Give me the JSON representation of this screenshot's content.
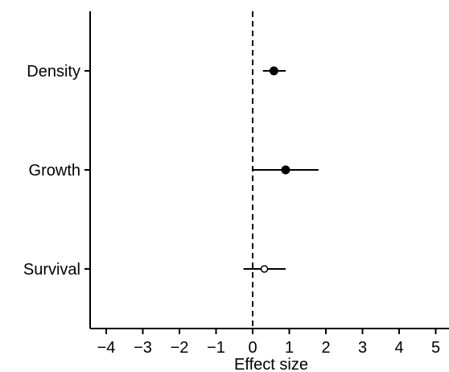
{
  "chart_data": {
    "type": "scatter",
    "title": "",
    "xlabel": "Effect size",
    "ylabel": "",
    "xlim": [
      -4.4,
      5.3
    ],
    "x_ticks": [
      -4,
      -3,
      -2,
      -1,
      0,
      1,
      2,
      3,
      4,
      5
    ],
    "x_tick_labels": [
      "−4",
      "−3",
      "−2",
      "−1",
      "0",
      "1",
      "2",
      "3",
      "4",
      "5"
    ],
    "categories": [
      "Density",
      "Growth",
      "Survival"
    ],
    "reference_line": {
      "x": 0,
      "style": "dashed"
    },
    "grid": false,
    "points": [
      {
        "category": "Density",
        "estimate": 0.58,
        "lower": 0.28,
        "upper": 0.9,
        "filled": true
      },
      {
        "category": "Growth",
        "estimate": 0.9,
        "lower": 0.0,
        "upper": 1.8,
        "filled": true
      },
      {
        "category": "Survival",
        "estimate": 0.32,
        "lower": -0.25,
        "upper": 0.9,
        "filled": false
      }
    ],
    "colors": {
      "ink": "#000000",
      "background": "#ffffff"
    }
  }
}
